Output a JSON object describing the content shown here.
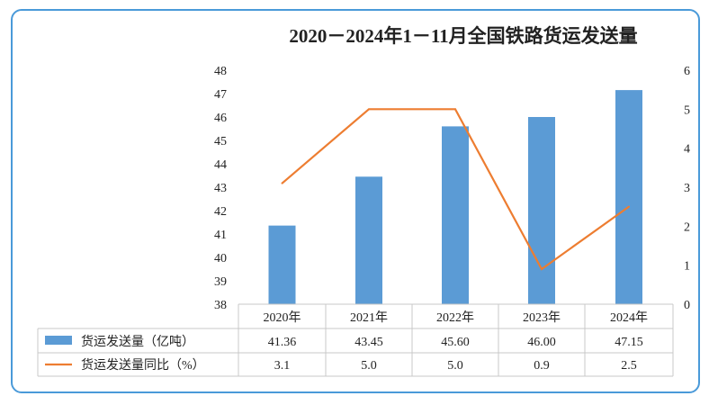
{
  "chart_data": {
    "type": "bar+line",
    "title": "2020－2024年1－11月全国铁路货运发送量",
    "categories": [
      "2020年",
      "2021年",
      "2022年",
      "2023年",
      "2024年"
    ],
    "series": [
      {
        "name": "货运发送量（亿吨）",
        "type": "bar",
        "axis": "left",
        "color": "#5b9bd5",
        "values": [
          41.36,
          43.45,
          45.6,
          46.0,
          47.15
        ],
        "labels": [
          "41.36",
          "43.45",
          "45.60",
          "46.00",
          "47.15"
        ]
      },
      {
        "name": "货运发送量同比（%）",
        "type": "line",
        "axis": "right",
        "color": "#ed7d31",
        "values": [
          3.1,
          5.0,
          5.0,
          0.9,
          2.5
        ],
        "labels": [
          "3.1",
          "5.0",
          "5.0",
          "0.9",
          "2.5"
        ]
      }
    ],
    "y_left": {
      "range": [
        38,
        48
      ],
      "ticks": [
        "38",
        "39",
        "40",
        "41",
        "42",
        "43",
        "44",
        "45",
        "46",
        "47",
        "48"
      ]
    },
    "y_right": {
      "range": [
        0,
        6
      ],
      "ticks": [
        "0",
        "1",
        "2",
        "3",
        "4",
        "5",
        "6"
      ]
    },
    "grid": false,
    "legend": "data-table"
  }
}
